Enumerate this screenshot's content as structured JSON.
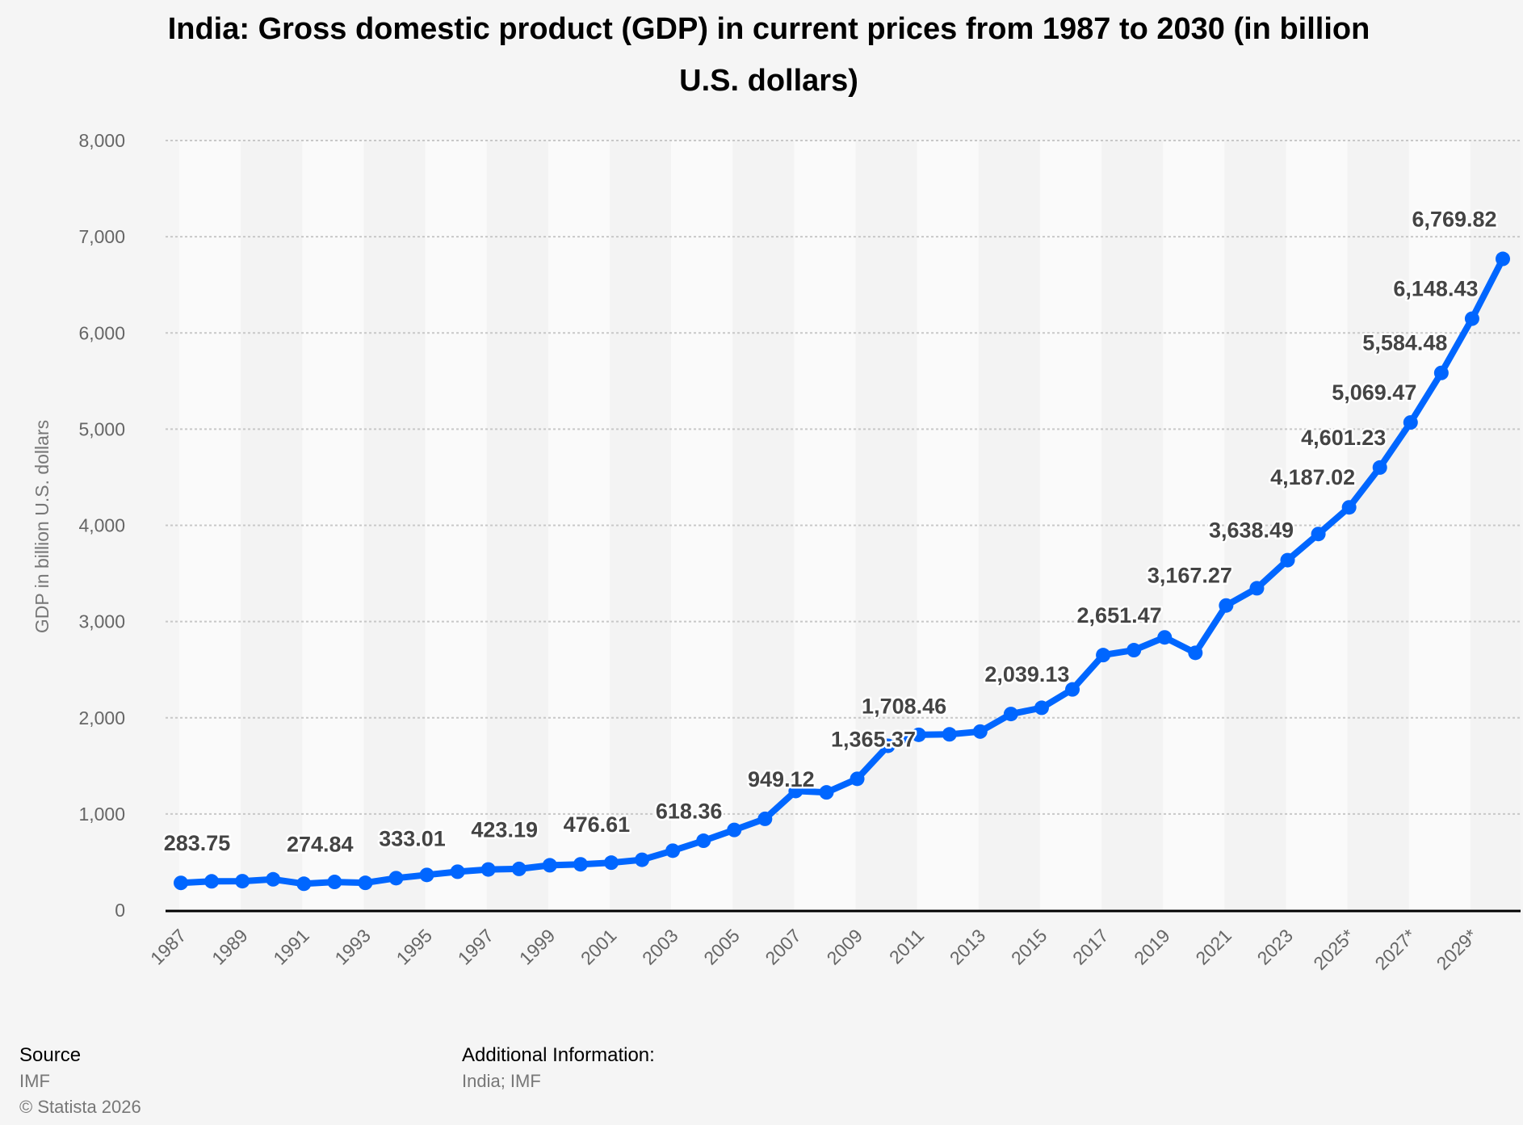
{
  "chart_data": {
    "type": "line",
    "title": "India: Gross domestic product (GDP) in current prices from 1987 to 2030 (in billion U.S. dollars)",
    "title_lines": [
      "India: Gross domestic product (GDP) in current prices from 1987 to 2030 (in billion",
      "U.S. dollars)"
    ],
    "xlabel": "",
    "ylabel": "GDP in billion U.S. dollars",
    "ylim": [
      0,
      8000
    ],
    "yticks": [
      0,
      1000,
      2000,
      3000,
      4000,
      5000,
      6000,
      7000,
      8000
    ],
    "ytick_labels": [
      "0",
      "1,000",
      "2,000",
      "3,000",
      "4,000",
      "5,000",
      "6,000",
      "7,000",
      "8,000"
    ],
    "x": [
      "1987",
      "1988",
      "1989",
      "1990",
      "1991",
      "1992",
      "1993",
      "1994",
      "1995",
      "1996",
      "1997",
      "1998",
      "1999",
      "2000",
      "2001",
      "2002",
      "2003",
      "2004",
      "2005",
      "2006",
      "2007",
      "2008",
      "2009",
      "2010",
      "2011",
      "2012",
      "2013",
      "2014",
      "2015",
      "2016",
      "2017",
      "2018",
      "2019",
      "2020",
      "2021",
      "2022",
      "2023",
      "2024",
      "2025*",
      "2026*",
      "2027*",
      "2028*",
      "2029*",
      "2030*"
    ],
    "xtick_labels": [
      "1987",
      "1989",
      "1991",
      "1993",
      "1995",
      "1997",
      "1999",
      "2001",
      "2003",
      "2005",
      "2007",
      "2009",
      "2011",
      "2013",
      "2015",
      "2017",
      "2019",
      "2021",
      "2023",
      "2025*",
      "2027*",
      "2029*"
    ],
    "values": [
      283.75,
      299.6,
      301.2,
      321.0,
      274.84,
      293.3,
      284.2,
      333.01,
      366.6,
      399.8,
      423.19,
      428.7,
      466.8,
      476.61,
      493.9,
      523.8,
      618.36,
      721.6,
      834.2,
      949.12,
      1238.7,
      1224.1,
      1365.37,
      1708.46,
      1823.0,
      1827.6,
      1856.7,
      2039.13,
      2103.6,
      2294.8,
      2651.47,
      2702.9,
      2835.6,
      2674.9,
      3167.27,
      3346.1,
      3638.49,
      3909.9,
      4187.02,
      4601.23,
      5069.47,
      5584.48,
      6148.43,
      6769.82
    ],
    "data_labels": [
      {
        "x": "1987",
        "text": "283.75"
      },
      {
        "x": "1991",
        "text": "274.84"
      },
      {
        "x": "1994",
        "text": "333.01"
      },
      {
        "x": "1997",
        "text": "423.19"
      },
      {
        "x": "2000",
        "text": "476.61"
      },
      {
        "x": "2003",
        "text": "618.36"
      },
      {
        "x": "2006",
        "text": "949.12"
      },
      {
        "x": "2009",
        "text": "1,365.37"
      },
      {
        "x": "2010",
        "text": "1,708.46"
      },
      {
        "x": "2014",
        "text": "2,039.13"
      },
      {
        "x": "2017",
        "text": "2,651.47"
      },
      {
        "x": "2021",
        "text": "3,167.27"
      },
      {
        "x": "2023",
        "text": "3,638.49"
      },
      {
        "x": "2025*",
        "text": "4,187.02"
      },
      {
        "x": "2026*",
        "text": "4,601.23"
      },
      {
        "x": "2027*",
        "text": "5,069.47"
      },
      {
        "x": "2028*",
        "text": "5,584.48"
      },
      {
        "x": "2029*",
        "text": "6,148.43"
      },
      {
        "x": "2030*",
        "text": "6,769.82"
      }
    ],
    "grid": true,
    "line_color": "#0066ff"
  },
  "footer": {
    "source_heading": "Source",
    "source": "IMF",
    "copyright": "© Statista 2026",
    "additional_heading": "Additional Information:",
    "additional": "India; IMF"
  }
}
